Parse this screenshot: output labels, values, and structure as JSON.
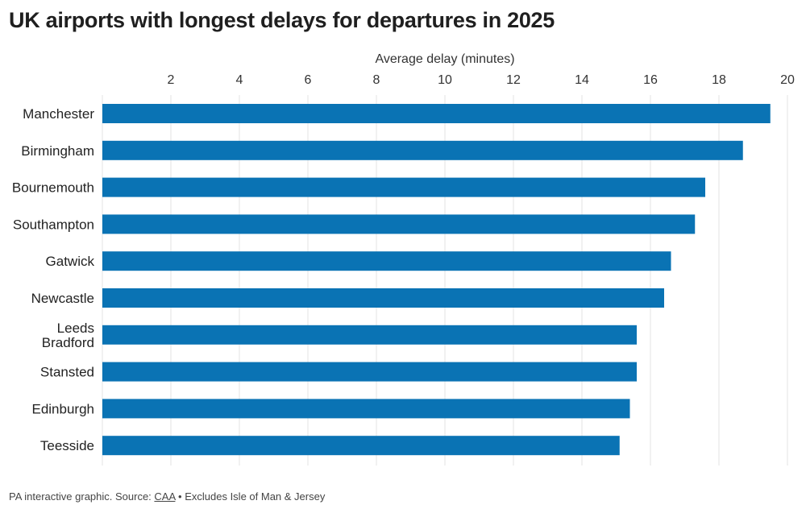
{
  "chart_data": {
    "type": "bar",
    "orientation": "horizontal",
    "title": "UK airports with longest delays for departures in 2025",
    "xlabel": "Average delay (minutes)",
    "ylabel": "",
    "xlim": [
      0,
      20
    ],
    "x_ticks": [
      2,
      4,
      6,
      8,
      10,
      12,
      14,
      16,
      18,
      20
    ],
    "x_axis_position": "top",
    "grid": "vertical",
    "legend": "none",
    "bar_color": "#0a73b4",
    "categories": [
      [
        "Manchester"
      ],
      [
        "Birmingham"
      ],
      [
        "Bournemouth"
      ],
      [
        "Southampton"
      ],
      [
        "Gatwick"
      ],
      [
        "Newcastle"
      ],
      [
        "Leeds",
        "Bradford"
      ],
      [
        "Stansted"
      ],
      [
        "Edinburgh"
      ],
      [
        "Teesside"
      ]
    ],
    "values": [
      19.5,
      18.7,
      17.6,
      17.3,
      16.6,
      16.4,
      15.6,
      15.6,
      15.4,
      15.1
    ]
  },
  "footer": {
    "prefix": "PA interactive graphic. Source: ",
    "source": "CAA",
    "suffix": " • Excludes Isle of Man & Jersey"
  }
}
